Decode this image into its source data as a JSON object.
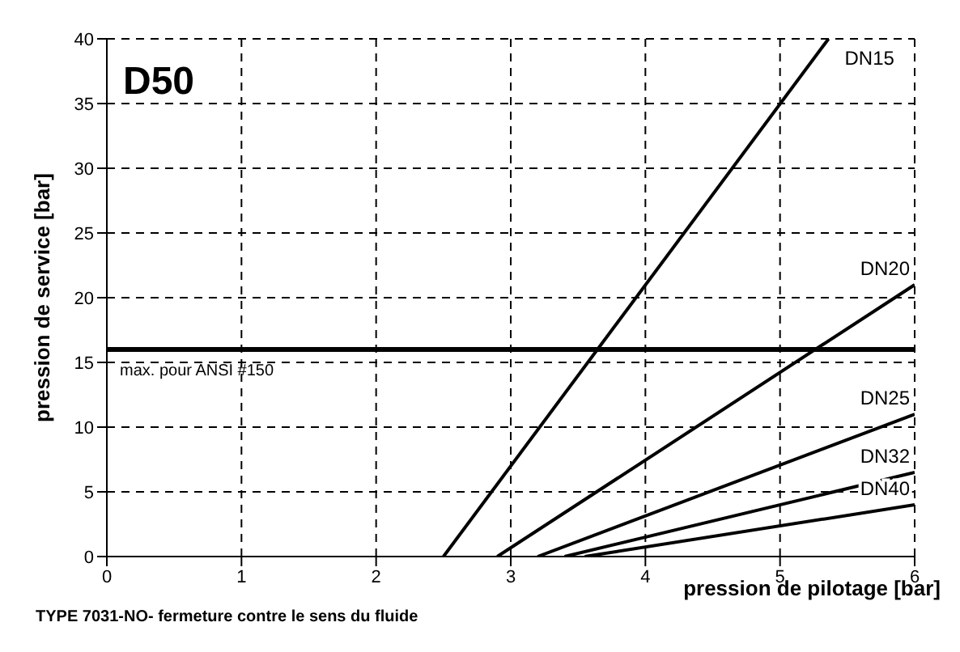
{
  "chart_data": {
    "type": "line",
    "title": "D50",
    "xlabel": "pression de pilotage [bar]",
    "ylabel": "pression de service [bar]",
    "xlim": [
      0,
      6
    ],
    "ylim": [
      0,
      40
    ],
    "xticks": [
      0,
      1,
      2,
      3,
      4,
      5,
      6
    ],
    "yticks": [
      0,
      5,
      10,
      15,
      20,
      25,
      30,
      35,
      40
    ],
    "grid": true,
    "marker": "none",
    "line_style": "solid",
    "series": [
      {
        "name": "DN15",
        "color": "#000000",
        "x": [
          2.5,
          5.36
        ],
        "values": [
          0,
          40
        ]
      },
      {
        "name": "DN20",
        "color": "#000000",
        "x": [
          2.9,
          6
        ],
        "values": [
          0,
          21
        ]
      },
      {
        "name": "DN25",
        "color": "#000000",
        "x": [
          3.2,
          6
        ],
        "values": [
          0,
          11
        ]
      },
      {
        "name": "DN32",
        "color": "#000000",
        "x": [
          3.4,
          6
        ],
        "values": [
          0,
          6.5
        ]
      },
      {
        "name": "DN40",
        "color": "#000000",
        "x": [
          3.55,
          6
        ],
        "values": [
          0,
          4
        ]
      }
    ],
    "ref_lines": [
      {
        "axis": "y",
        "value": 16,
        "label": "max. pour ANSI #150",
        "color": "#000000",
        "line_style": "solid"
      }
    ],
    "annotations": [
      "TYPE 7031-NO- fermeture contre le sens du fluide"
    ]
  }
}
